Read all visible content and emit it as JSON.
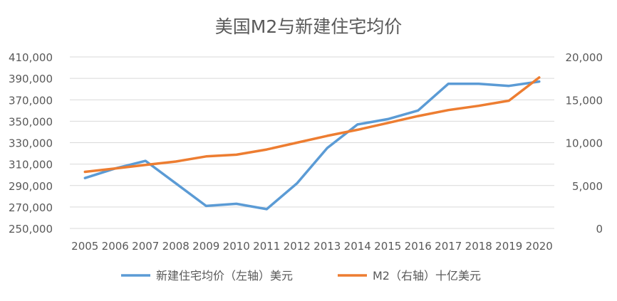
{
  "chart_data": {
    "type": "line",
    "title": "美国M2与新建住宅均价",
    "xlabel": "",
    "ylabel": "",
    "y2label": "",
    "categories": [
      "2005",
      "2006",
      "2007",
      "2008",
      "2009",
      "2010",
      "2011",
      "2012",
      "2013",
      "2014",
      "2015",
      "2016",
      "2017",
      "2018",
      "2019",
      "2020"
    ],
    "y_left": {
      "min": 250000,
      "max": 410000,
      "step": 20000,
      "ticks": [
        "250,000",
        "270,000",
        "290,000",
        "310,000",
        "330,000",
        "350,000",
        "370,000",
        "390,000",
        "410,000"
      ]
    },
    "y_right": {
      "min": 0,
      "max": 20000,
      "step": 5000,
      "ticks": [
        "0",
        "5,000",
        "10,000",
        "15,000",
        "20,000"
      ]
    },
    "grid": true,
    "legend_position": "bottom",
    "series": [
      {
        "name": "新建住宅均价（左轴）美元",
        "axis": "left",
        "color": "#5B9BD5",
        "values": [
          297000,
          306000,
          313000,
          292000,
          271000,
          273000,
          268000,
          292000,
          325000,
          347000,
          352000,
          360000,
          385000,
          385000,
          383000,
          387000
        ]
      },
      {
        "name": "M2（右轴）十亿美元",
        "axis": "right",
        "color": "#ED7D31",
        "values": [
          6600,
          7000,
          7400,
          7800,
          8400,
          8600,
          9200,
          10000,
          10800,
          11500,
          12300,
          13100,
          13800,
          14300,
          14900,
          17600
        ]
      }
    ]
  }
}
